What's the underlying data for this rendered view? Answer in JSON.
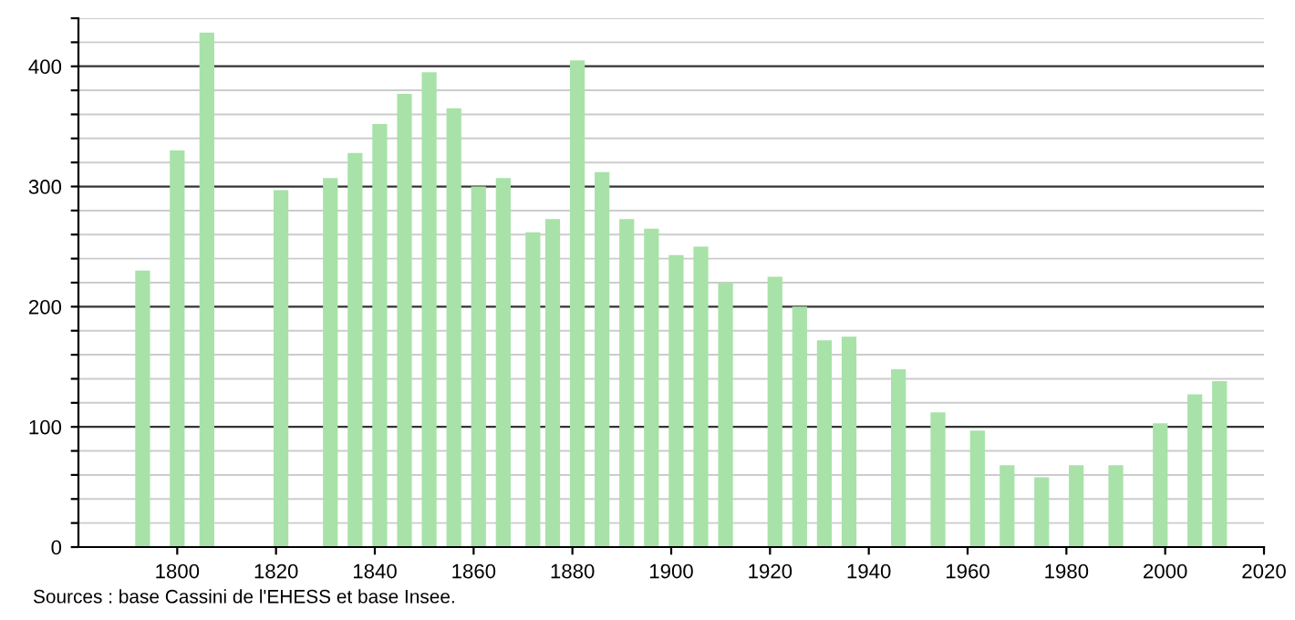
{
  "chart_data": {
    "type": "bar",
    "annotations": [
      "Sources : base Cassini de l'EHESS et base Insee."
    ],
    "x": [
      1793,
      1800,
      1806,
      1821,
      1831,
      1836,
      1841,
      1846,
      1851,
      1856,
      1861,
      1866,
      1872,
      1876,
      1881,
      1886,
      1891,
      1896,
      1901,
      1906,
      1911,
      1921,
      1926,
      1931,
      1936,
      1946,
      1954,
      1962,
      1968,
      1975,
      1982,
      1990,
      1999,
      2006,
      2011
    ],
    "values": [
      230,
      330,
      428,
      297,
      307,
      328,
      352,
      377,
      395,
      365,
      300,
      307,
      262,
      273,
      405,
      312,
      273,
      265,
      243,
      250,
      220,
      225,
      200,
      172,
      175,
      148,
      112,
      97,
      68,
      58,
      68,
      68,
      103,
      127,
      138
    ],
    "color": "#a8e2a8",
    "xlim": [
      1780,
      2020
    ],
    "xticks": [
      1800,
      1820,
      1840,
      1860,
      1880,
      1900,
      1920,
      1940,
      1960,
      1980,
      2000,
      2020
    ],
    "ylim": [
      0,
      440
    ],
    "yticks": [
      0,
      {
        "value": 20,
        "label": null
      },
      {
        "value": 40,
        "label": null
      },
      {
        "value": 60,
        "label": null
      },
      {
        "value": 80,
        "label": null
      },
      100,
      {
        "value": 120,
        "label": null
      },
      {
        "value": 140,
        "label": null
      },
      {
        "value": 160,
        "label": null
      },
      {
        "value": 180,
        "label": null
      },
      200,
      {
        "value": 220,
        "label": null
      },
      {
        "value": 240,
        "label": null
      },
      {
        "value": 260,
        "label": null
      },
      {
        "value": 280,
        "label": null
      },
      300,
      {
        "value": 320,
        "label": null
      },
      {
        "value": 340,
        "label": null
      },
      {
        "value": 360,
        "label": null
      },
      {
        "value": 380,
        "label": null
      },
      400,
      {
        "value": 420,
        "label": null
      },
      {
        "value": 440,
        "label": null
      }
    ],
    "grid": "y"
  }
}
